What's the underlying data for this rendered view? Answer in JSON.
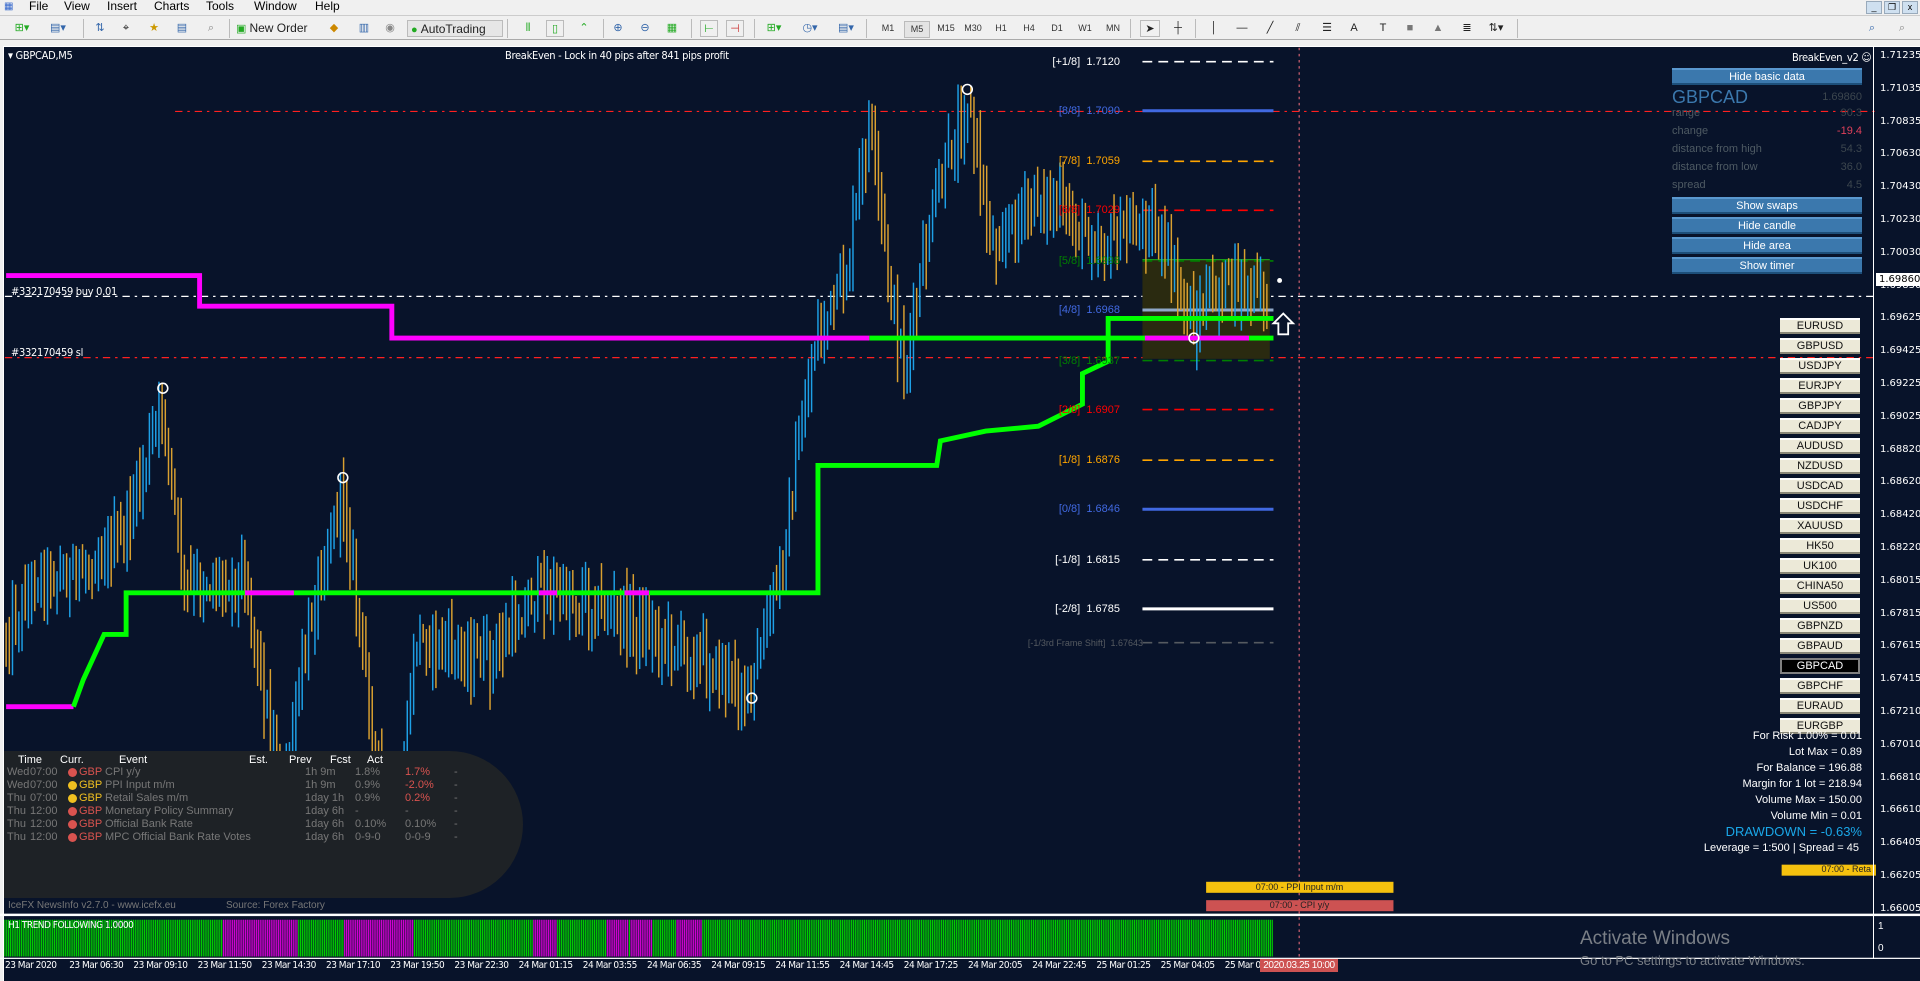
{
  "menu": [
    "File",
    "View",
    "Insert",
    "Charts",
    "Tools",
    "Window",
    "Help"
  ],
  "toolbar": {
    "new_order": "New Order",
    "autotrading": "AutoTrading",
    "timeframes": [
      "M1",
      "M5",
      "M15",
      "M30",
      "H1",
      "H4",
      "D1",
      "W1",
      "MN"
    ],
    "active_timeframe": "M5"
  },
  "chart": {
    "symbol_label": "GBPCAD,M5",
    "breakeven_text": "BreakEven - Lock in 40 pips after 841 pips profit",
    "order_label": "#332170459 buy 0.01",
    "sl_label": "#332170459 sl",
    "current_price": "1.69860",
    "colors": {
      "background": "#08132a",
      "bull": "#1ea0e6",
      "bear": "#d9a030",
      "trend_up": "#00ff00",
      "trend_down": "#ff00ff"
    }
  },
  "axis": {
    "ticks": [
      "1.71235",
      "1.71035",
      "1.70835",
      "1.70630",
      "1.70430",
      "1.70230",
      "1.70030",
      "1.69830",
      "1.69625",
      "1.69425",
      "1.69225",
      "1.69025",
      "1.68820",
      "1.68620",
      "1.68420",
      "1.68220",
      "1.68015",
      "1.67815",
      "1.67615",
      "1.67415",
      "1.67210",
      "1.67010",
      "1.66810",
      "1.66610",
      "1.66405",
      "1.66205",
      "1.66005"
    ]
  },
  "murrey": [
    {
      "label": "[+1/8]",
      "value": "1.7120",
      "color": "#ffffff",
      "style": "dashed"
    },
    {
      "label": "[8/8]",
      "value": "1.7090",
      "color": "#4169e1",
      "style": "solid"
    },
    {
      "label": "[7/8]",
      "value": "1.7059",
      "color": "#ffa500",
      "style": "dashed"
    },
    {
      "label": "[6/8]",
      "value": "1.7029",
      "color": "#ff0000",
      "style": "dashed"
    },
    {
      "label": "[5/8]",
      "value": "1.6998",
      "color": "#008000",
      "style": "dashed"
    },
    {
      "label": "[4/8]",
      "value": "1.6968",
      "color": "#4169e1",
      "style": "solid-light"
    },
    {
      "label": "[3/8]",
      "value": "1.6937",
      "color": "#008000",
      "style": "dashed"
    },
    {
      "label": "[2/8]",
      "value": "1.6907",
      "color": "#ff0000",
      "style": "dashed"
    },
    {
      "label": "[1/8]",
      "value": "1.6876",
      "color": "#ffa500",
      "style": "dashed"
    },
    {
      "label": "[0/8]",
      "value": "1.6846",
      "color": "#4169e1",
      "style": "solid"
    },
    {
      "label": "[-1/8]",
      "value": "1.6815",
      "color": "#ffffff",
      "style": "dashed"
    },
    {
      "label": "[-2/8]",
      "value": "1.6785",
      "color": "#ffffff",
      "style": "solid"
    },
    {
      "label": "[-1/3rd Frame Shift]",
      "value": "1.67643",
      "color": "#555a60",
      "style": "dashed"
    }
  ],
  "panel": {
    "title": "BreakEven_v2",
    "hide_basic": "Hide basic data",
    "symbol": "GBPCAD",
    "price": "1.69860",
    "stats": [
      {
        "label": "range",
        "value": "90.3"
      },
      {
        "label": "change",
        "value": "-19.4",
        "color": "#e0405a"
      },
      {
        "label": "distance from high",
        "value": "54.3"
      },
      {
        "label": "distance from low",
        "value": "36.0"
      },
      {
        "label": "spread",
        "value": "4.5"
      }
    ],
    "buttons": [
      "Show swaps",
      "Hide candle",
      "Hide area",
      "Show timer"
    ]
  },
  "symbols": [
    "EURUSD",
    "GBPUSD",
    "USDJPY",
    "EURJPY",
    "GBPJPY",
    "CADJPY",
    "AUDUSD",
    "NZDUSD",
    "USDCAD",
    "USDCHF",
    "XAUUSD",
    "HK50",
    "UK100",
    "CHINA50",
    "US500",
    "GBPNZD",
    "GBPAUD",
    "GBPCAD",
    "GBPCHF",
    "EURAUD",
    "EURGBP"
  ],
  "active_symbol": "GBPCAD",
  "info": [
    "For Risk 1.00% = 0.01",
    "Lot Max = 0.89",
    "For Balance = 196.88",
    "Margin for 1 lot = 218.94",
    "Volume Max = 150.00",
    "Volume Min = 0.01",
    "DRAWDOWN = -0.63%",
    "Leverage = 1:500 | Spread = 45"
  ],
  "news": {
    "headers": [
      "Time",
      "Curr.",
      "Event",
      "Est.",
      "Prev",
      "Fcst",
      "Act"
    ],
    "rows": [
      {
        "day": "Wed",
        "time": "07:00",
        "impact": "#d9534f",
        "curr": "GBP",
        "event": "CPI y/y",
        "est": "1h 9m",
        "prev": "1.8%",
        "fcst": "1.7%",
        "act": "-"
      },
      {
        "day": "Wed",
        "time": "07:00",
        "impact": "#f0c020",
        "curr": "GBP",
        "event": "PPI Input m/m",
        "est": "1h 9m",
        "prev": "0.9%",
        "fcst": "-2.0%",
        "act": "-"
      },
      {
        "day": "Thu",
        "time": "07:00",
        "impact": "#f0c020",
        "curr": "GBP",
        "event": "Retail Sales m/m",
        "est": "1day 1h",
        "prev": "0.9%",
        "fcst": "0.2%",
        "act": "-"
      },
      {
        "day": "Thu",
        "time": "12:00",
        "impact": "#d9534f",
        "curr": "GBP",
        "event": "Monetary Policy Summary",
        "est": "1day 6h",
        "prev": "-",
        "fcst": "-",
        "act": "-"
      },
      {
        "day": "Thu",
        "time": "12:00",
        "impact": "#d9534f",
        "curr": "GBP",
        "event": "Official Bank Rate",
        "est": "1day 6h",
        "prev": "0.10%",
        "fcst": "0.10%",
        "act": "-"
      },
      {
        "day": "Thu",
        "time": "12:00",
        "impact": "#d9534f",
        "curr": "GBP",
        "event": "MPC Official Bank Rate Votes",
        "est": "1day 6h",
        "prev": "0-9-0",
        "fcst": "0-0-9",
        "act": "-"
      }
    ],
    "footer": "IceFX NewsInfo v2.7.0  -  www.icefx.eu",
    "source": "Source: Forex Factory",
    "bars": [
      {
        "text": "07:00 - PPI Input m/m",
        "color": "#f5c10e"
      },
      {
        "text": "07:00 - CPI y/y",
        "color": "#cd5252"
      },
      {
        "text": "07:00 - Reta",
        "color": "#f5c10e"
      }
    ]
  },
  "indicator": {
    "title": "H1 TREND FOLLOWING 1.0000",
    "scale": [
      "1",
      "0"
    ]
  },
  "time_axis": {
    "labels": [
      "23 Mar 2020",
      "23 Mar 06:30",
      "23 Mar 09:10",
      "23 Mar 11:50",
      "23 Mar 14:30",
      "23 Mar 17:10",
      "23 Mar 19:50",
      "23 Mar 22:30",
      "24 Mar 01:15",
      "24 Mar 03:55",
      "24 Mar 06:35",
      "24 Mar 09:15",
      "24 Mar 11:55",
      "24 Mar 14:45",
      "24 Mar 17:25",
      "24 Mar 20:05",
      "24 Mar 22:45",
      "25 Mar 01:25",
      "25 Mar 04:05",
      "25 Mar 06:45"
    ],
    "cursor_time": "2020.03.25 10:00"
  },
  "watermark": {
    "title": "Activate Windows",
    "subtitle": "Go to PC settings to activate Windows."
  }
}
